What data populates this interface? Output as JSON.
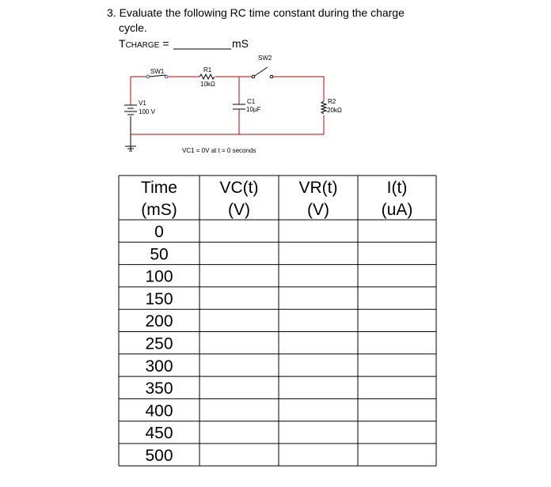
{
  "question": {
    "text": "3. Evaluate the following RC time constant during the charge",
    "text2": "cycle.",
    "t": "T",
    "sub": "CHARGE",
    "eq": "=",
    "unit": "mS"
  },
  "circuit": {
    "sw1": "SW1",
    "r1": "R1",
    "r1_value": "10kΩ",
    "sw2": "SW2",
    "v1": "V1",
    "v1_value": "100 V",
    "c1": "C1",
    "c1_value": "10µF",
    "r2": "R2",
    "r2_value": "20kΩ",
    "note": "VC1 = 0V at t = 0 seconds"
  },
  "table": {
    "header": [
      [
        "Time",
        "(mS)"
      ],
      [
        "VC(t)",
        "(V)"
      ],
      [
        "VR(t)",
        "(V)"
      ],
      [
        "I(t)",
        "(uA)"
      ]
    ],
    "times": [
      0,
      50,
      100,
      150,
      200,
      250,
      300,
      350,
      400,
      450,
      500
    ]
  }
}
